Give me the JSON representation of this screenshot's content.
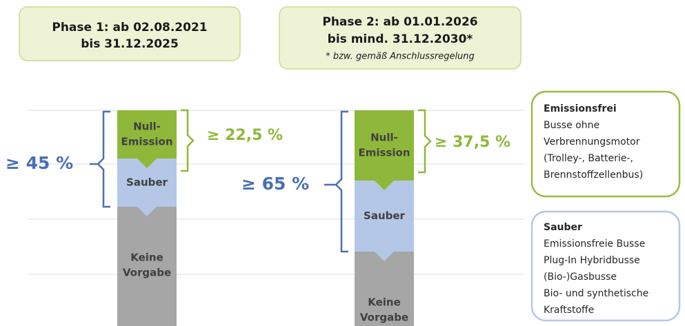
{
  "phases": [
    {
      "title": [
        "Phase 1: ab 02.08.2021",
        "bis 31.12.2025"
      ]
    },
    {
      "title": [
        "Phase 2: ab 01.01.2026",
        "bis mind. 31.12.2030*"
      ],
      "note": "* bzw. gemäß Anschlussregelung"
    }
  ],
  "columns": [
    {
      "segments": [
        [
          "Null-",
          "Emission"
        ],
        [
          "Sauber"
        ],
        [
          "Keine",
          "Vorgabe"
        ]
      ],
      "zero_label": "≥ 22,5 %",
      "clean_label": "≥ 45 %"
    },
    {
      "segments": [
        [
          "Null-",
          "Emission"
        ],
        [
          "Sauber"
        ],
        [
          "Keine",
          "Vorgabe"
        ]
      ],
      "zero_label": "≥ 37,5 %",
      "clean_label": "≥ 65 %"
    }
  ],
  "legend": [
    {
      "title": "Emissionsfrei",
      "lines": [
        "Busse ohne",
        "Verbrennungsmotor",
        "(Trolley-, Batterie-,",
        "Brennstoffzellenbus)"
      ]
    },
    {
      "title": "Sauber",
      "lines": [
        "Emissionsfreie Busse",
        "Plug-In Hybridbusse",
        "(Bio-)Gasbusse",
        "Bio- und synthetische",
        "Kraftstoffe"
      ]
    }
  ]
}
